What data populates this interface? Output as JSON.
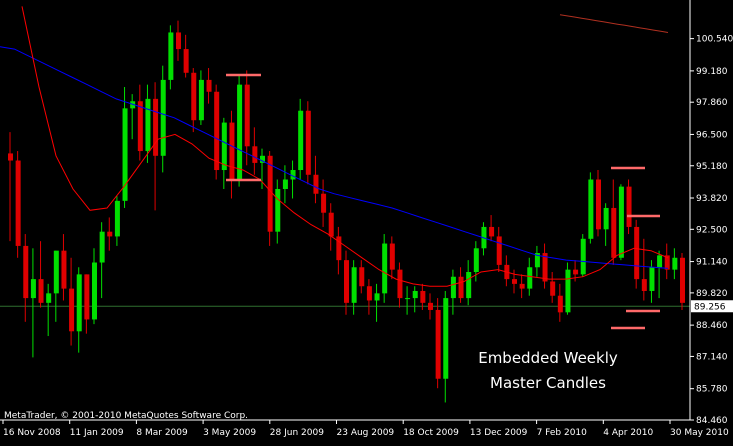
{
  "chart_data": {
    "type": "candlestick",
    "symbol_hint": "weekly",
    "ylim": [
      84.46,
      102.0
    ],
    "y_ticks": [
      "100.540",
      "99.180",
      "97.860",
      "96.500",
      "95.180",
      "93.820",
      "92.500",
      "91.140",
      "89.820",
      "88.460",
      "87.140",
      "85.780",
      "84.460"
    ],
    "x_ticks": [
      "16 Nov 2008",
      "11 Jan 2009",
      "8 Mar 2009",
      "3 May 2009",
      "28 Jun 2009",
      "23 Aug 2009",
      "18 Oct 2009",
      "13 Dec 2009",
      "7 Feb 2010",
      "4 Apr 2010",
      "30 May 2010"
    ],
    "current_price": "89.256",
    "annotation_lines": [
      "Embedded Weekly",
      "Master Candles"
    ],
    "copyright": "MetaTrader, © 2001-2010 MetaQuotes Software Corp.",
    "colors": {
      "background": "#000000",
      "bull": "#00e000",
      "bear": "#e00000",
      "ma_slow": "#0000ff",
      "ma_fast": "#ff0000",
      "ma_long": "#b03020",
      "price_line": "#2f6f2f",
      "master_marks": "#ff6a6a",
      "axis_text": "#ffffff"
    },
    "candles": [
      {
        "o": 95.7,
        "h": 96.6,
        "l": 92.0,
        "c": 95.4
      },
      {
        "o": 95.4,
        "h": 95.8,
        "l": 91.3,
        "c": 91.8
      },
      {
        "o": 91.8,
        "h": 92.3,
        "l": 88.6,
        "c": 89.6
      },
      {
        "o": 89.6,
        "h": 91.7,
        "l": 87.1,
        "c": 90.4
      },
      {
        "o": 90.4,
        "h": 92.0,
        "l": 89.2,
        "c": 89.4
      },
      {
        "o": 89.4,
        "h": 90.2,
        "l": 88.0,
        "c": 89.8
      },
      {
        "o": 89.8,
        "h": 91.6,
        "l": 88.6,
        "c": 91.6
      },
      {
        "o": 91.6,
        "h": 92.3,
        "l": 89.5,
        "c": 90.0
      },
      {
        "o": 90.0,
        "h": 91.3,
        "l": 87.6,
        "c": 88.2
      },
      {
        "o": 88.2,
        "h": 90.9,
        "l": 87.3,
        "c": 90.6
      },
      {
        "o": 90.6,
        "h": 90.6,
        "l": 88.1,
        "c": 88.7
      },
      {
        "o": 88.7,
        "h": 91.7,
        "l": 88.5,
        "c": 91.1
      },
      {
        "o": 91.1,
        "h": 92.8,
        "l": 89.6,
        "c": 92.4
      },
      {
        "o": 92.4,
        "h": 93.0,
        "l": 91.6,
        "c": 92.2
      },
      {
        "o": 92.2,
        "h": 93.9,
        "l": 91.8,
        "c": 93.7
      },
      {
        "o": 93.7,
        "h": 98.5,
        "l": 93.4,
        "c": 97.6
      },
      {
        "o": 97.6,
        "h": 98.2,
        "l": 96.3,
        "c": 97.9
      },
      {
        "o": 97.9,
        "h": 98.6,
        "l": 95.4,
        "c": 95.8
      },
      {
        "o": 95.8,
        "h": 98.6,
        "l": 95.3,
        "c": 98.0
      },
      {
        "o": 98.0,
        "h": 98.7,
        "l": 93.3,
        "c": 95.6
      },
      {
        "o": 95.6,
        "h": 99.4,
        "l": 94.9,
        "c": 98.8
      },
      {
        "o": 98.8,
        "h": 101.1,
        "l": 98.4,
        "c": 100.8
      },
      {
        "o": 100.8,
        "h": 101.3,
        "l": 99.6,
        "c": 100.1
      },
      {
        "o": 100.1,
        "h": 100.7,
        "l": 98.9,
        "c": 99.1
      },
      {
        "o": 99.1,
        "h": 99.3,
        "l": 96.6,
        "c": 97.1
      },
      {
        "o": 97.1,
        "h": 99.2,
        "l": 96.9,
        "c": 98.8
      },
      {
        "o": 98.8,
        "h": 99.3,
        "l": 97.8,
        "c": 98.3
      },
      {
        "o": 98.3,
        "h": 98.6,
        "l": 94.6,
        "c": 95.0
      },
      {
        "o": 95.0,
        "h": 97.2,
        "l": 94.2,
        "c": 97.0
      },
      {
        "o": 97.0,
        "h": 97.5,
        "l": 93.8,
        "c": 94.6
      },
      {
        "o": 94.6,
        "h": 99.0,
        "l": 94.3,
        "c": 98.6
      },
      {
        "o": 98.6,
        "h": 99.2,
        "l": 95.2,
        "c": 96.0
      },
      {
        "o": 96.0,
        "h": 96.8,
        "l": 94.8,
        "c": 95.3
      },
      {
        "o": 95.3,
        "h": 95.9,
        "l": 94.2,
        "c": 95.6
      },
      {
        "o": 95.6,
        "h": 95.8,
        "l": 91.8,
        "c": 92.4
      },
      {
        "o": 92.4,
        "h": 94.6,
        "l": 91.9,
        "c": 94.2
      },
      {
        "o": 94.2,
        "h": 95.2,
        "l": 93.6,
        "c": 94.6
      },
      {
        "o": 94.6,
        "h": 95.4,
        "l": 93.8,
        "c": 95.0
      },
      {
        "o": 95.0,
        "h": 98.0,
        "l": 94.6,
        "c": 97.5
      },
      {
        "o": 97.5,
        "h": 97.9,
        "l": 94.4,
        "c": 94.8
      },
      {
        "o": 94.8,
        "h": 95.6,
        "l": 93.6,
        "c": 94.0
      },
      {
        "o": 94.0,
        "h": 94.6,
        "l": 92.6,
        "c": 93.2
      },
      {
        "o": 93.2,
        "h": 93.6,
        "l": 91.6,
        "c": 92.2
      },
      {
        "o": 92.2,
        "h": 92.6,
        "l": 90.6,
        "c": 91.2
      },
      {
        "o": 91.2,
        "h": 91.6,
        "l": 88.9,
        "c": 89.4
      },
      {
        "o": 89.4,
        "h": 91.2,
        "l": 88.9,
        "c": 90.9
      },
      {
        "o": 90.9,
        "h": 91.2,
        "l": 89.8,
        "c": 90.1
      },
      {
        "o": 90.1,
        "h": 90.4,
        "l": 88.9,
        "c": 89.5
      },
      {
        "o": 89.5,
        "h": 90.2,
        "l": 88.6,
        "c": 89.8
      },
      {
        "o": 89.8,
        "h": 92.3,
        "l": 89.4,
        "c": 91.9
      },
      {
        "o": 91.9,
        "h": 92.2,
        "l": 90.4,
        "c": 90.8
      },
      {
        "o": 90.8,
        "h": 91.1,
        "l": 89.2,
        "c": 89.6
      },
      {
        "o": 89.6,
        "h": 90.1,
        "l": 88.9,
        "c": 89.6
      },
      {
        "o": 89.6,
        "h": 90.1,
        "l": 89.0,
        "c": 89.9
      },
      {
        "o": 89.9,
        "h": 90.2,
        "l": 89.1,
        "c": 89.4
      },
      {
        "o": 89.4,
        "h": 89.8,
        "l": 88.7,
        "c": 89.1
      },
      {
        "o": 89.1,
        "h": 89.6,
        "l": 85.8,
        "c": 86.2
      },
      {
        "o": 86.2,
        "h": 89.9,
        "l": 85.2,
        "c": 89.6
      },
      {
        "o": 89.6,
        "h": 90.8,
        "l": 88.9,
        "c": 90.5
      },
      {
        "o": 90.5,
        "h": 90.9,
        "l": 89.4,
        "c": 89.6
      },
      {
        "o": 89.6,
        "h": 91.2,
        "l": 89.3,
        "c": 90.7
      },
      {
        "o": 90.7,
        "h": 92.0,
        "l": 90.3,
        "c": 91.7
      },
      {
        "o": 91.7,
        "h": 92.8,
        "l": 91.4,
        "c": 92.6
      },
      {
        "o": 92.6,
        "h": 93.1,
        "l": 92.0,
        "c": 92.2
      },
      {
        "o": 92.2,
        "h": 92.6,
        "l": 90.7,
        "c": 91.0
      },
      {
        "o": 91.0,
        "h": 91.4,
        "l": 90.1,
        "c": 90.4
      },
      {
        "o": 90.4,
        "h": 90.8,
        "l": 89.8,
        "c": 90.2
      },
      {
        "o": 90.2,
        "h": 90.6,
        "l": 89.6,
        "c": 90.0
      },
      {
        "o": 90.0,
        "h": 91.3,
        "l": 89.7,
        "c": 90.9
      },
      {
        "o": 90.9,
        "h": 91.8,
        "l": 90.5,
        "c": 91.5
      },
      {
        "o": 91.5,
        "h": 91.9,
        "l": 90.0,
        "c": 90.3
      },
      {
        "o": 90.3,
        "h": 90.7,
        "l": 89.4,
        "c": 89.7
      },
      {
        "o": 89.7,
        "h": 90.2,
        "l": 88.6,
        "c": 89.0
      },
      {
        "o": 89.0,
        "h": 91.1,
        "l": 88.9,
        "c": 90.8
      },
      {
        "o": 90.8,
        "h": 91.2,
        "l": 90.3,
        "c": 90.6
      },
      {
        "o": 90.6,
        "h": 92.3,
        "l": 90.5,
        "c": 92.1
      },
      {
        "o": 92.1,
        "h": 94.9,
        "l": 91.9,
        "c": 94.6
      },
      {
        "o": 94.6,
        "h": 95.0,
        "l": 92.2,
        "c": 92.5
      },
      {
        "o": 92.5,
        "h": 93.6,
        "l": 91.8,
        "c": 93.4
      },
      {
        "o": 93.4,
        "h": 94.6,
        "l": 91.0,
        "c": 91.3
      },
      {
        "o": 91.3,
        "h": 94.4,
        "l": 91.2,
        "c": 94.3
      },
      {
        "o": 94.3,
        "h": 94.6,
        "l": 92.3,
        "c": 92.6
      },
      {
        "o": 92.6,
        "h": 92.9,
        "l": 90.0,
        "c": 90.4
      },
      {
        "o": 90.4,
        "h": 92.1,
        "l": 89.5,
        "c": 89.9
      },
      {
        "o": 89.9,
        "h": 91.2,
        "l": 89.4,
        "c": 90.9
      },
      {
        "o": 90.9,
        "h": 91.6,
        "l": 89.6,
        "c": 91.4
      },
      {
        "o": 91.4,
        "h": 91.9,
        "l": 90.4,
        "c": 90.8
      },
      {
        "o": 90.8,
        "h": 91.7,
        "l": 90.4,
        "c": 91.3
      },
      {
        "o": 91.3,
        "h": 91.5,
        "l": 89.1,
        "c": 89.4
      }
    ],
    "ma_blue": [
      100.2,
      100.1,
      99.8,
      99.5,
      99.2,
      98.9,
      98.6,
      98.3,
      98.0,
      97.8,
      97.6,
      97.4,
      97.2,
      96.9,
      96.6,
      96.3,
      96.0,
      95.7,
      95.4,
      95.1,
      94.8,
      94.5,
      94.2,
      94.0,
      93.85,
      93.7,
      93.55,
      93.4,
      93.2,
      93.0,
      92.8,
      92.6,
      92.4,
      92.2,
      92.0,
      91.8,
      91.6,
      91.4,
      91.3,
      91.2,
      91.15,
      91.1,
      91.05,
      91.0,
      90.95,
      90.9,
      90.85
    ],
    "ma_red": [
      101.9,
      98.5,
      95.6,
      94.2,
      93.3,
      93.4,
      94.3,
      95.3,
      96.3,
      96.5,
      96.1,
      95.5,
      95.2,
      95.0,
      94.6,
      93.8,
      93.2,
      92.7,
      92.3,
      91.8,
      91.3,
      90.8,
      90.4,
      90.2,
      90.1,
      90.1,
      90.3,
      90.7,
      90.8,
      90.6,
      90.5,
      90.4,
      90.4,
      90.5,
      90.8,
      91.4,
      91.7,
      91.6,
      91.3
    ],
    "ma_long": [
      101.55,
      101.5,
      101.45,
      101.4,
      101.35,
      101.3,
      101.25,
      101.2,
      101.15,
      101.1,
      101.05,
      101.0,
      100.95,
      100.9,
      100.85,
      100.8
    ]
  }
}
